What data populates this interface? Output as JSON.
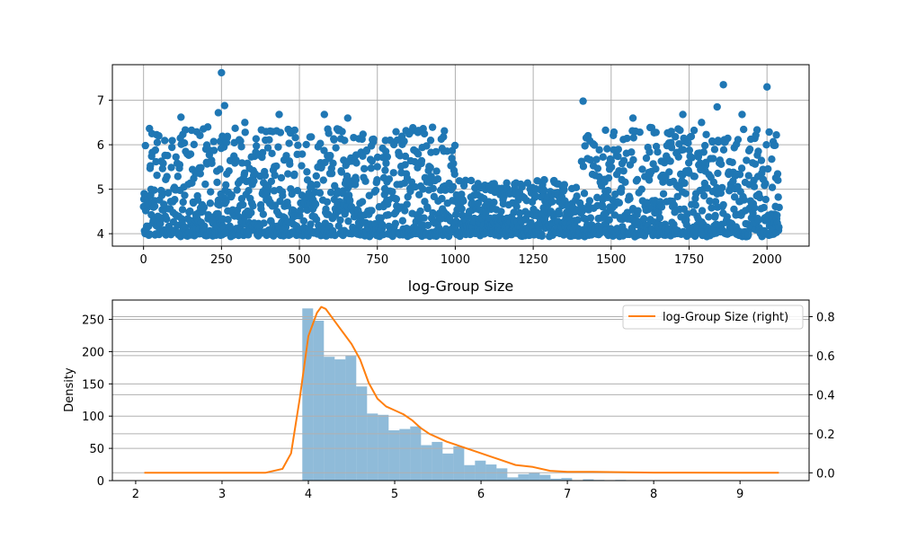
{
  "chart_data": [
    {
      "type": "scatter",
      "title": "",
      "xlabel": "",
      "ylabel": "",
      "xlim": [
        -100,
        2135
      ],
      "ylim": [
        3.72,
        7.8
      ],
      "x_ticks": [
        0,
        250,
        500,
        750,
        1000,
        1250,
        1500,
        1750,
        2000
      ],
      "y_ticks": [
        4,
        5,
        6,
        7
      ],
      "grid": true,
      "color": "#1f77b4",
      "n_points": 2040,
      "y_floor": 3.93,
      "notable_points": [
        {
          "x": 250,
          "y": 7.62
        },
        {
          "x": 1860,
          "y": 7.35
        },
        {
          "x": 2000,
          "y": 7.3
        },
        {
          "x": 1410,
          "y": 6.98
        },
        {
          "x": 260,
          "y": 6.88
        },
        {
          "x": 1840,
          "y": 6.85
        },
        {
          "x": 240,
          "y": 6.72
        },
        {
          "x": 1920,
          "y": 6.68
        },
        {
          "x": 120,
          "y": 6.62
        },
        {
          "x": 435,
          "y": 6.68
        },
        {
          "x": 580,
          "y": 6.68
        },
        {
          "x": 655,
          "y": 6.6
        },
        {
          "x": 1570,
          "y": 6.6
        },
        {
          "x": 1730,
          "y": 6.68
        },
        {
          "x": 1790,
          "y": 6.5
        },
        {
          "x": 325,
          "y": 6.5
        },
        {
          "x": 2030,
          "y": 6.22
        }
      ]
    },
    {
      "type": "histogram",
      "title": "log-Group Size",
      "xlabel": "",
      "ylabel": "Density",
      "xlim": [
        1.73,
        9.8
      ],
      "ylim": [
        0,
        280
      ],
      "y2lim": [
        -0.04,
        0.885
      ],
      "x_ticks": [
        2,
        3,
        4,
        5,
        6,
        7,
        8,
        9
      ],
      "y_ticks": [
        0,
        50,
        100,
        150,
        200,
        250
      ],
      "y2_ticks": [
        "0.0",
        "0.2",
        "0.4",
        "0.6",
        "0.8"
      ],
      "grid": true,
      "bin_edges": [
        3.93,
        4.055,
        4.18,
        4.305,
        4.43,
        4.555,
        4.68,
        4.805,
        4.93,
        5.055,
        5.18,
        5.305,
        5.43,
        5.555,
        5.68,
        5.805,
        5.93,
        6.055,
        6.18,
        6.305,
        6.43,
        6.555,
        6.68,
        6.805,
        6.93,
        7.055,
        7.18,
        7.305,
        7.43,
        7.555,
        7.68
      ],
      "values": [
        267,
        248,
        192,
        188,
        194,
        146,
        104,
        102,
        78,
        80,
        84,
        55,
        60,
        42,
        53,
        24,
        31,
        25,
        19,
        5,
        10,
        12,
        9,
        3,
        4,
        0,
        2,
        1,
        0,
        1
      ],
      "bar_color": "#1f77b4",
      "series": [
        {
          "name": "log-Group Size (right)",
          "type": "line",
          "color": "#ff7f0e",
          "x": [
            2.1,
            3.0,
            3.5,
            3.7,
            3.8,
            3.9,
            4.0,
            4.1,
            4.15,
            4.2,
            4.3,
            4.4,
            4.5,
            4.6,
            4.7,
            4.8,
            4.9,
            5.0,
            5.1,
            5.2,
            5.3,
            5.4,
            5.5,
            5.6,
            5.8,
            6.0,
            6.2,
            6.4,
            6.6,
            6.8,
            7.0,
            7.3,
            7.6,
            8.0,
            9.0,
            9.45
          ],
          "y": [
            0.0,
            0.0,
            0.0,
            0.02,
            0.1,
            0.38,
            0.7,
            0.82,
            0.85,
            0.84,
            0.78,
            0.72,
            0.66,
            0.58,
            0.46,
            0.38,
            0.34,
            0.32,
            0.3,
            0.27,
            0.23,
            0.2,
            0.18,
            0.16,
            0.13,
            0.1,
            0.07,
            0.04,
            0.03,
            0.01,
            0.005,
            0.005,
            0.003,
            0.001,
            0.0,
            0.0
          ]
        }
      ],
      "legend": {
        "location": "top-right",
        "entries": [
          "log-Group Size (right)"
        ]
      }
    }
  ]
}
